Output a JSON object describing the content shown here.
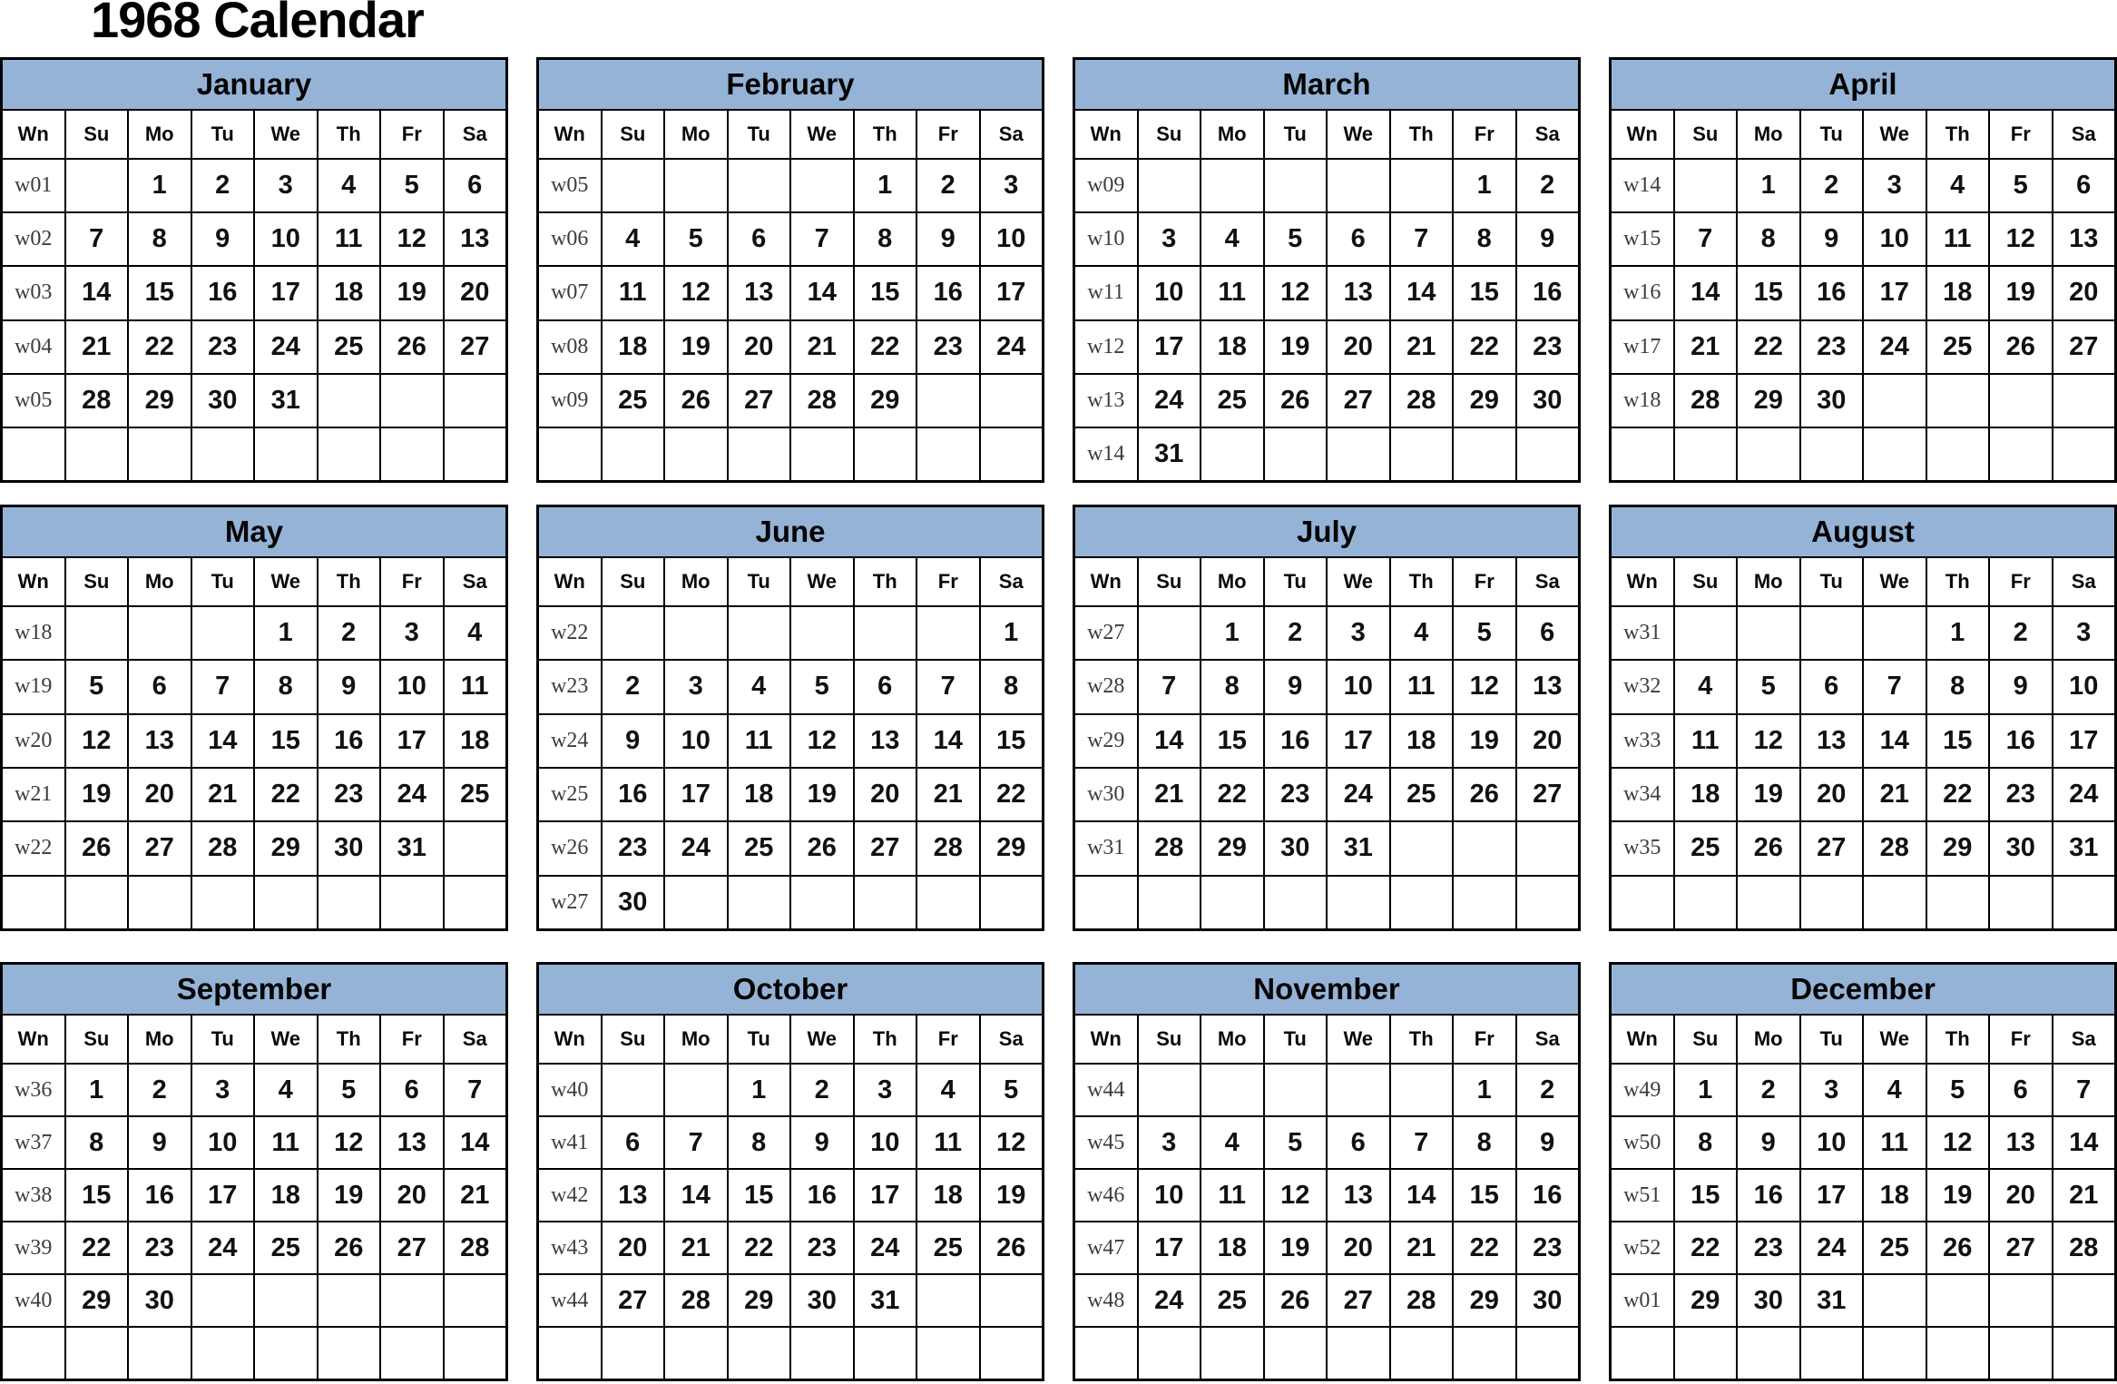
{
  "title": "1968 Calendar",
  "colors": {
    "month_header_bg": "#95b3d7",
    "weekend_red": "#f20d10",
    "weekday_text": "#111111",
    "week_number_text": "#3c3c3c",
    "grid_border": "#000000",
    "background": "#ffffff"
  },
  "day_headers": [
    "Wn",
    "Su",
    "Mo",
    "Tu",
    "We",
    "Th",
    "Fr",
    "Sa"
  ],
  "weekend_header_indices": [
    1,
    7
  ],
  "weekend_day_indices": [
    0,
    6
  ],
  "months": [
    {
      "name": "January",
      "weeks": [
        {
          "wn": "w01",
          "days": [
            "",
            "1",
            "2",
            "3",
            "4",
            "5",
            "6"
          ]
        },
        {
          "wn": "w02",
          "days": [
            "7",
            "8",
            "9",
            "10",
            "11",
            "12",
            "13"
          ]
        },
        {
          "wn": "w03",
          "days": [
            "14",
            "15",
            "16",
            "17",
            "18",
            "19",
            "20"
          ]
        },
        {
          "wn": "w04",
          "days": [
            "21",
            "22",
            "23",
            "24",
            "25",
            "26",
            "27"
          ]
        },
        {
          "wn": "w05",
          "days": [
            "28",
            "29",
            "30",
            "31",
            "",
            "",
            ""
          ]
        },
        {
          "wn": "",
          "days": [
            "",
            "",
            "",
            "",
            "",
            "",
            ""
          ]
        }
      ]
    },
    {
      "name": "February",
      "weeks": [
        {
          "wn": "w05",
          "days": [
            "",
            "",
            "",
            "",
            "1",
            "2",
            "3"
          ]
        },
        {
          "wn": "w06",
          "days": [
            "4",
            "5",
            "6",
            "7",
            "8",
            "9",
            "10"
          ]
        },
        {
          "wn": "w07",
          "days": [
            "11",
            "12",
            "13",
            "14",
            "15",
            "16",
            "17"
          ]
        },
        {
          "wn": "w08",
          "days": [
            "18",
            "19",
            "20",
            "21",
            "22",
            "23",
            "24"
          ]
        },
        {
          "wn": "w09",
          "days": [
            "25",
            "26",
            "27",
            "28",
            "29",
            "",
            ""
          ]
        },
        {
          "wn": "",
          "days": [
            "",
            "",
            "",
            "",
            "",
            "",
            ""
          ]
        }
      ]
    },
    {
      "name": "March",
      "weeks": [
        {
          "wn": "w09",
          "days": [
            "",
            "",
            "",
            "",
            "",
            "1",
            "2"
          ]
        },
        {
          "wn": "w10",
          "days": [
            "3",
            "4",
            "5",
            "6",
            "7",
            "8",
            "9"
          ]
        },
        {
          "wn": "w11",
          "days": [
            "10",
            "11",
            "12",
            "13",
            "14",
            "15",
            "16"
          ]
        },
        {
          "wn": "w12",
          "days": [
            "17",
            "18",
            "19",
            "20",
            "21",
            "22",
            "23"
          ]
        },
        {
          "wn": "w13",
          "days": [
            "24",
            "25",
            "26",
            "27",
            "28",
            "29",
            "30"
          ]
        },
        {
          "wn": "w14",
          "days": [
            "31",
            "",
            "",
            "",
            "",
            "",
            ""
          ]
        }
      ]
    },
    {
      "name": "April",
      "weeks": [
        {
          "wn": "w14",
          "days": [
            "",
            "1",
            "2",
            "3",
            "4",
            "5",
            "6"
          ]
        },
        {
          "wn": "w15",
          "days": [
            "7",
            "8",
            "9",
            "10",
            "11",
            "12",
            "13"
          ]
        },
        {
          "wn": "w16",
          "days": [
            "14",
            "15",
            "16",
            "17",
            "18",
            "19",
            "20"
          ]
        },
        {
          "wn": "w17",
          "days": [
            "21",
            "22",
            "23",
            "24",
            "25",
            "26",
            "27"
          ]
        },
        {
          "wn": "w18",
          "days": [
            "28",
            "29",
            "30",
            "",
            "",
            "",
            ""
          ]
        },
        {
          "wn": "",
          "days": [
            "",
            "",
            "",
            "",
            "",
            "",
            ""
          ]
        }
      ]
    },
    {
      "name": "May",
      "weeks": [
        {
          "wn": "w18",
          "days": [
            "",
            "",
            "",
            "1",
            "2",
            "3",
            "4"
          ]
        },
        {
          "wn": "w19",
          "days": [
            "5",
            "6",
            "7",
            "8",
            "9",
            "10",
            "11"
          ]
        },
        {
          "wn": "w20",
          "days": [
            "12",
            "13",
            "14",
            "15",
            "16",
            "17",
            "18"
          ]
        },
        {
          "wn": "w21",
          "days": [
            "19",
            "20",
            "21",
            "22",
            "23",
            "24",
            "25"
          ]
        },
        {
          "wn": "w22",
          "days": [
            "26",
            "27",
            "28",
            "29",
            "30",
            "31",
            ""
          ]
        },
        {
          "wn": "",
          "days": [
            "",
            "",
            "",
            "",
            "",
            "",
            ""
          ]
        }
      ]
    },
    {
      "name": "June",
      "weeks": [
        {
          "wn": "w22",
          "days": [
            "",
            "",
            "",
            "",
            "",
            "",
            "1"
          ]
        },
        {
          "wn": "w23",
          "days": [
            "2",
            "3",
            "4",
            "5",
            "6",
            "7",
            "8"
          ]
        },
        {
          "wn": "w24",
          "days": [
            "9",
            "10",
            "11",
            "12",
            "13",
            "14",
            "15"
          ]
        },
        {
          "wn": "w25",
          "days": [
            "16",
            "17",
            "18",
            "19",
            "20",
            "21",
            "22"
          ]
        },
        {
          "wn": "w26",
          "days": [
            "23",
            "24",
            "25",
            "26",
            "27",
            "28",
            "29"
          ]
        },
        {
          "wn": "w27",
          "days": [
            "30",
            "",
            "",
            "",
            "",
            "",
            ""
          ]
        }
      ]
    },
    {
      "name": "July",
      "weeks": [
        {
          "wn": "w27",
          "days": [
            "",
            "1",
            "2",
            "3",
            "4",
            "5",
            "6"
          ]
        },
        {
          "wn": "w28",
          "days": [
            "7",
            "8",
            "9",
            "10",
            "11",
            "12",
            "13"
          ]
        },
        {
          "wn": "w29",
          "days": [
            "14",
            "15",
            "16",
            "17",
            "18",
            "19",
            "20"
          ]
        },
        {
          "wn": "w30",
          "days": [
            "21",
            "22",
            "23",
            "24",
            "25",
            "26",
            "27"
          ]
        },
        {
          "wn": "w31",
          "days": [
            "28",
            "29",
            "30",
            "31",
            "",
            "",
            ""
          ]
        },
        {
          "wn": "",
          "days": [
            "",
            "",
            "",
            "",
            "",
            "",
            ""
          ]
        }
      ]
    },
    {
      "name": "August",
      "weeks": [
        {
          "wn": "w31",
          "days": [
            "",
            "",
            "",
            "",
            "1",
            "2",
            "3"
          ]
        },
        {
          "wn": "w32",
          "days": [
            "4",
            "5",
            "6",
            "7",
            "8",
            "9",
            "10"
          ]
        },
        {
          "wn": "w33",
          "days": [
            "11",
            "12",
            "13",
            "14",
            "15",
            "16",
            "17"
          ]
        },
        {
          "wn": "w34",
          "days": [
            "18",
            "19",
            "20",
            "21",
            "22",
            "23",
            "24"
          ]
        },
        {
          "wn": "w35",
          "days": [
            "25",
            "26",
            "27",
            "28",
            "29",
            "30",
            "31"
          ]
        },
        {
          "wn": "",
          "days": [
            "",
            "",
            "",
            "",
            "",
            "",
            ""
          ]
        }
      ]
    },
    {
      "name": "September",
      "weeks": [
        {
          "wn": "w36",
          "days": [
            "1",
            "2",
            "3",
            "4",
            "5",
            "6",
            "7"
          ]
        },
        {
          "wn": "w37",
          "days": [
            "8",
            "9",
            "10",
            "11",
            "12",
            "13",
            "14"
          ]
        },
        {
          "wn": "w38",
          "days": [
            "15",
            "16",
            "17",
            "18",
            "19",
            "20",
            "21"
          ]
        },
        {
          "wn": "w39",
          "days": [
            "22",
            "23",
            "24",
            "25",
            "26",
            "27",
            "28"
          ]
        },
        {
          "wn": "w40",
          "days": [
            "29",
            "30",
            "",
            "",
            "",
            "",
            ""
          ]
        },
        {
          "wn": "",
          "days": [
            "",
            "",
            "",
            "",
            "",
            "",
            ""
          ]
        }
      ]
    },
    {
      "name": "October",
      "weeks": [
        {
          "wn": "w40",
          "days": [
            "",
            "",
            "1",
            "2",
            "3",
            "4",
            "5"
          ]
        },
        {
          "wn": "w41",
          "days": [
            "6",
            "7",
            "8",
            "9",
            "10",
            "11",
            "12"
          ]
        },
        {
          "wn": "w42",
          "days": [
            "13",
            "14",
            "15",
            "16",
            "17",
            "18",
            "19"
          ]
        },
        {
          "wn": "w43",
          "days": [
            "20",
            "21",
            "22",
            "23",
            "24",
            "25",
            "26"
          ]
        },
        {
          "wn": "w44",
          "days": [
            "27",
            "28",
            "29",
            "30",
            "31",
            "",
            ""
          ]
        },
        {
          "wn": "",
          "days": [
            "",
            "",
            "",
            "",
            "",
            "",
            ""
          ]
        }
      ]
    },
    {
      "name": "November",
      "weeks": [
        {
          "wn": "w44",
          "days": [
            "",
            "",
            "",
            "",
            "",
            "1",
            "2"
          ]
        },
        {
          "wn": "w45",
          "days": [
            "3",
            "4",
            "5",
            "6",
            "7",
            "8",
            "9"
          ]
        },
        {
          "wn": "w46",
          "days": [
            "10",
            "11",
            "12",
            "13",
            "14",
            "15",
            "16"
          ]
        },
        {
          "wn": "w47",
          "days": [
            "17",
            "18",
            "19",
            "20",
            "21",
            "22",
            "23"
          ]
        },
        {
          "wn": "w48",
          "days": [
            "24",
            "25",
            "26",
            "27",
            "28",
            "29",
            "30"
          ]
        },
        {
          "wn": "",
          "days": [
            "",
            "",
            "",
            "",
            "",
            "",
            ""
          ]
        }
      ]
    },
    {
      "name": "December",
      "weeks": [
        {
          "wn": "w49",
          "days": [
            "1",
            "2",
            "3",
            "4",
            "5",
            "6",
            "7"
          ]
        },
        {
          "wn": "w50",
          "days": [
            "8",
            "9",
            "10",
            "11",
            "12",
            "13",
            "14"
          ]
        },
        {
          "wn": "w51",
          "days": [
            "15",
            "16",
            "17",
            "18",
            "19",
            "20",
            "21"
          ]
        },
        {
          "wn": "w52",
          "days": [
            "22",
            "23",
            "24",
            "25",
            "26",
            "27",
            "28"
          ]
        },
        {
          "wn": "w01",
          "days": [
            "29",
            "30",
            "31",
            "",
            "",
            "",
            ""
          ]
        },
        {
          "wn": "",
          "days": [
            "",
            "",
            "",
            "",
            "",
            "",
            ""
          ]
        }
      ]
    }
  ]
}
